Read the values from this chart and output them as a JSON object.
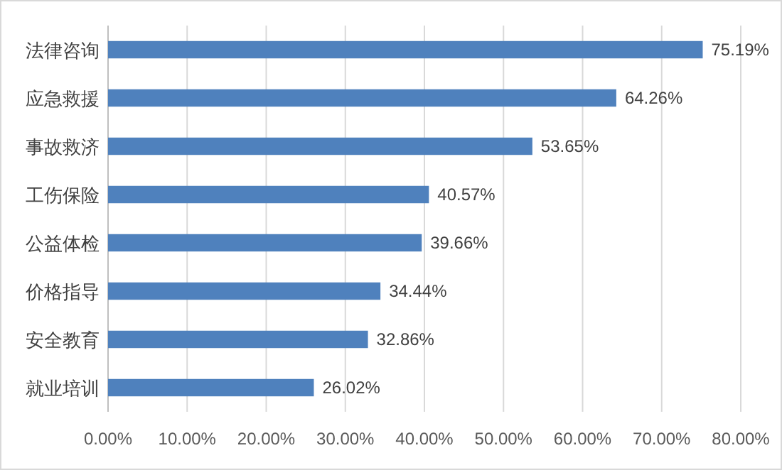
{
  "chart_data": {
    "type": "bar",
    "orientation": "horizontal",
    "categories": [
      "法律咨询",
      "应急救援",
      "事故救济",
      "工伤保险",
      "公益体检",
      "价格指导",
      "安全教育",
      "就业培训"
    ],
    "values": [
      75.19,
      64.26,
      53.65,
      40.57,
      39.66,
      34.44,
      32.86,
      26.02
    ],
    "value_labels": [
      "75.19%",
      "64.26%",
      "53.65%",
      "40.57%",
      "39.66%",
      "34.44%",
      "32.86%",
      "26.02%"
    ],
    "color": "#4f81bd",
    "xlim": [
      0,
      80
    ],
    "xticks": [
      {
        "value": 0,
        "label": "0.00%"
      },
      {
        "value": 10,
        "label": "10.00%"
      },
      {
        "value": 20,
        "label": "20.00%"
      },
      {
        "value": 30,
        "label": "30.00%"
      },
      {
        "value": 40,
        "label": "40.00%"
      },
      {
        "value": 50,
        "label": "50.00%"
      },
      {
        "value": 60,
        "label": "60.00%"
      },
      {
        "value": 70,
        "label": "70.00%"
      },
      {
        "value": 80,
        "label": "80.00%"
      }
    ],
    "grid": "x"
  }
}
